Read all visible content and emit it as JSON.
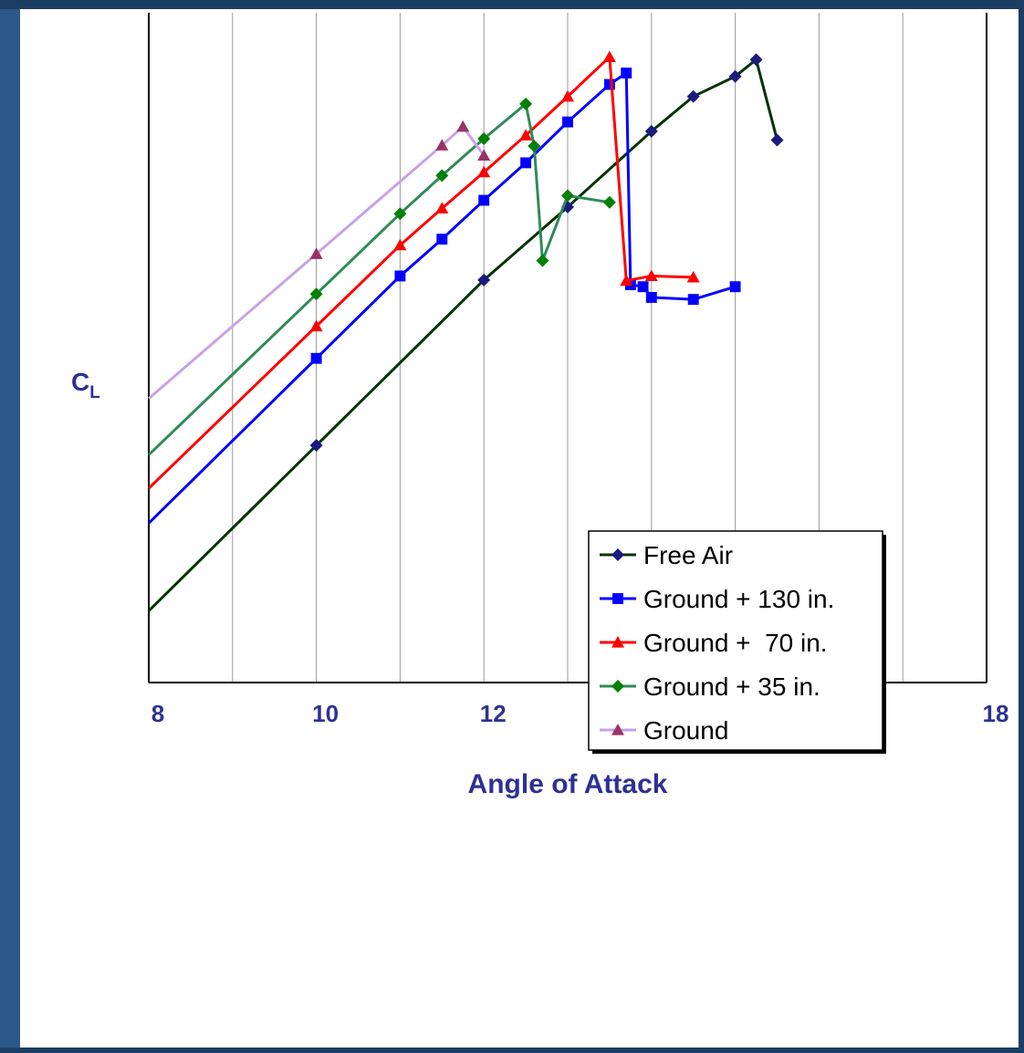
{
  "chart_data": {
    "type": "line",
    "xlabel": "Angle of Attack",
    "ylabel": "C",
    "ylabel_sub": "L",
    "xlim": [
      8,
      18
    ],
    "xticks": [
      "8",
      "10",
      "12",
      "14",
      "16",
      "18"
    ],
    "ylim": [
      0,
      1
    ],
    "y_tick_labels_shown": false,
    "grid": "vertical",
    "legend_placement": "center-right",
    "series": [
      {
        "name": "Free Air",
        "color": "#003300",
        "marker": "diamond",
        "marker_color": "#1a1a80",
        "extrapolated_to_x": 8,
        "x": [
          10,
          12,
          13,
          14,
          14.5,
          15,
          15.25,
          15.5
        ],
        "y": [
          0.354,
          0.601,
          0.71,
          0.823,
          0.875,
          0.905,
          0.93,
          0.81
        ]
      },
      {
        "name": "Ground + 130 in.",
        "color": "#0000ff",
        "marker": "square",
        "marker_color": "#0000ff",
        "extrapolated_to_x": 8,
        "x": [
          10,
          11,
          11.5,
          12,
          12.5,
          13,
          13.5,
          13.7,
          13.75,
          13.9,
          14,
          14.5,
          15
        ],
        "y": [
          0.484,
          0.607,
          0.662,
          0.72,
          0.776,
          0.837,
          0.893,
          0.91,
          0.594,
          0.591,
          0.575,
          0.572,
          0.591
        ]
      },
      {
        "name": "Ground +  70 in.",
        "color": "#ff0000",
        "marker": "triangle",
        "marker_color": "#ff0000",
        "extrapolated_to_x": 8,
        "x": [
          10,
          11,
          11.5,
          12,
          12.5,
          13,
          13.5,
          13.7,
          14,
          14.5
        ],
        "y": [
          0.532,
          0.653,
          0.708,
          0.762,
          0.817,
          0.875,
          0.934,
          0.6,
          0.607,
          0.605
        ]
      },
      {
        "name": "Ground + 35 in.",
        "color": "#2e8b57",
        "marker": "diamond",
        "marker_color": "#008000",
        "extrapolated_to_x": 8,
        "x": [
          10,
          11,
          11.5,
          12,
          12.5,
          12.6,
          12.7,
          13,
          13.5
        ],
        "y": [
          0.58,
          0.7,
          0.757,
          0.812,
          0.864,
          0.801,
          0.63,
          0.727,
          0.717
        ]
      },
      {
        "name": "Ground",
        "color": "#c8a2e8",
        "marker": "triangle",
        "marker_color": "#993366",
        "extrapolated_to_x": 8,
        "x": [
          10,
          11.5,
          11.75,
          12
        ],
        "y": [
          0.64,
          0.802,
          0.83,
          0.787
        ]
      }
    ]
  }
}
